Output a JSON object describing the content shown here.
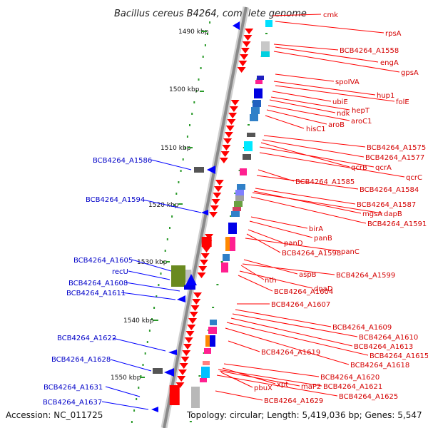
{
  "title": "Bacillus cereus B4264, complete genome",
  "accession": "Accession: NC_011725",
  "stats": "Topology: circular; Length: 5,419,036 bp; Genes: 5,547",
  "colors": {
    "backbone": "#888888",
    "forward_feature": "#ff0000",
    "reverse_feature": "#0000ff",
    "right_label": "#d40000",
    "left_label": "#0000c8",
    "tick": "#2a9a2a"
  },
  "kbp_ticks": [
    "1490 kbp",
    "1500 kbp",
    "1510 kbp",
    "1520 kbp",
    "1530 kbp",
    "1540 kbp",
    "1550 kbp"
  ],
  "right_labels": [
    "cmk",
    "rpsA",
    "BCB4264_A1558",
    "engA",
    "gpsA",
    "spoIVA",
    "hup1",
    "folE",
    "ubiE",
    "hepT",
    "ndk",
    "aroC1",
    "aroB",
    "hisC1",
    "BCB4264_A1575",
    "BCB4264_A1577",
    "qcrB",
    "qcrA",
    "qcrC",
    "BCB4264_A1585",
    "BCB4264_A1584",
    "BCB4264_A1587",
    "mgsA",
    "dapB",
    "BCB4264_A1591",
    "birA",
    "panB",
    "panD",
    "BCB4264_A1598",
    "panC",
    "aspB",
    "BCB4264_A1599",
    "nth",
    "dnaD",
    "BCB4264_A1604",
    "BCB4264_A1607",
    "BCB4264_A1609",
    "BCB4264_A1610",
    "BCB4264_A1613",
    "BCB4264_A1619",
    "BCB4264_A1615",
    "BCB4264_A1618",
    "BCB4264_A1620",
    "xpt",
    "pbuX",
    "maP2",
    "BCB4264_A1621",
    "BCB4264_A1625",
    "BCB4264_A1629"
  ],
  "left_labels": [
    "BCB4264_A1586",
    "BCB4264_A1594",
    "BCB4264_A1605",
    "recU",
    "BCB4264_A1608",
    "BCB4264_A1611",
    "BCB4264_A1622",
    "BCB4264_A1628",
    "BCB4264_A1631",
    "BCB4264_A1637"
  ]
}
